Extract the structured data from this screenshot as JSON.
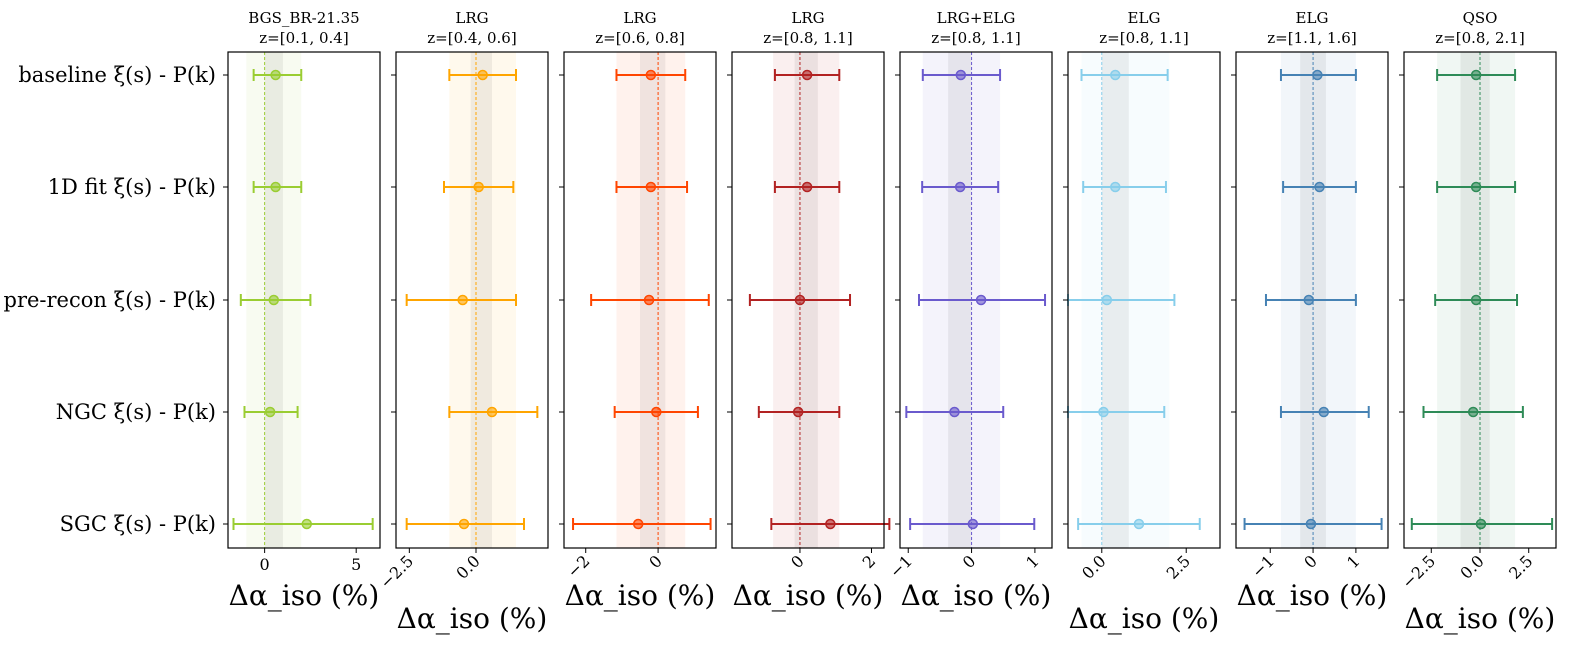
{
  "chart_data": {
    "type": "errorbar-forest",
    "rows": [
      "baseline ξ(s) - P(k)",
      "1D fit ξ(s) - P(k)",
      "pre-recon ξ(s) - P(k)",
      "NGC ξ(s) - P(k)",
      "SGC ξ(s) - P(k)"
    ],
    "xlabel": "Δα_iso (%)",
    "reference_line": 0,
    "panels": [
      {
        "title": "BGS_BR-21.35",
        "subtitle": "z=[0.1, 0.4]",
        "color": "#9acd32",
        "xlim": [
          -2.0,
          6.3
        ],
        "ticks": [
          0,
          5
        ],
        "tick_labels": [
          "0",
          "5"
        ],
        "tick_rotation": 0,
        "band_inner": [
          0,
          1.0
        ],
        "band_outer": [
          -1.0,
          2.0
        ],
        "points": [
          {
            "value": 0.6,
            "lo": -0.6,
            "hi": 2.0
          },
          {
            "value": 0.6,
            "lo": -0.6,
            "hi": 2.0
          },
          {
            "value": 0.5,
            "lo": -1.3,
            "hi": 2.5
          },
          {
            "value": 0.3,
            "lo": -1.1,
            "hi": 1.8
          },
          {
            "value": 2.3,
            "lo": -1.7,
            "hi": 5.9
          }
        ]
      },
      {
        "title": "LRG",
        "subtitle": "z=[0.4, 0.6]",
        "color": "#ffa500",
        "xlim": [
          -3.0,
          2.7
        ],
        "ticks": [
          -2.5,
          0.0
        ],
        "tick_labels": [
          "−2.5",
          "0.0"
        ],
        "tick_rotation": -45,
        "band_inner": [
          -0.2,
          0.6
        ],
        "band_outer": [
          -1.0,
          1.5
        ],
        "points": [
          {
            "value": 0.25,
            "lo": -1.0,
            "hi": 1.5
          },
          {
            "value": 0.1,
            "lo": -1.2,
            "hi": 1.4
          },
          {
            "value": -0.5,
            "lo": -2.6,
            "hi": 1.5
          },
          {
            "value": 0.6,
            "lo": -1.0,
            "hi": 2.3
          },
          {
            "value": -0.45,
            "lo": -2.6,
            "hi": 1.8
          }
        ]
      },
      {
        "title": "LRG",
        "subtitle": "z=[0.6, 0.8]",
        "color": "#ff4500",
        "xlim": [
          -2.6,
          1.6
        ],
        "ticks": [
          -2,
          0
        ],
        "tick_labels": [
          "−2",
          "0"
        ],
        "tick_rotation": -45,
        "band_inner": [
          -0.5,
          0.2
        ],
        "band_outer": [
          -1.15,
          0.75
        ],
        "points": [
          {
            "value": -0.2,
            "lo": -1.15,
            "hi": 0.75
          },
          {
            "value": -0.2,
            "lo": -1.15,
            "hi": 0.8
          },
          {
            "value": -0.25,
            "lo": -1.85,
            "hi": 1.4
          },
          {
            "value": -0.05,
            "lo": -1.2,
            "hi": 1.1
          },
          {
            "value": -0.55,
            "lo": -2.35,
            "hi": 1.45
          }
        ]
      },
      {
        "title": "LRG",
        "subtitle": "z=[0.8, 1.1]",
        "color": "#b22222",
        "xlim": [
          -1.9,
          2.35
        ],
        "ticks": [
          0,
          2
        ],
        "tick_labels": [
          "0",
          "2"
        ],
        "tick_rotation": -45,
        "band_inner": [
          -0.15,
          0.5
        ],
        "band_outer": [
          -0.75,
          1.1
        ],
        "points": [
          {
            "value": 0.2,
            "lo": -0.7,
            "hi": 1.1
          },
          {
            "value": 0.2,
            "lo": -0.7,
            "hi": 1.1
          },
          {
            "value": 0.0,
            "lo": -1.4,
            "hi": 1.4
          },
          {
            "value": -0.05,
            "lo": -1.15,
            "hi": 1.1
          },
          {
            "value": 0.85,
            "lo": -0.8,
            "hi": 2.5
          }
        ]
      },
      {
        "title": "LRG+ELG",
        "subtitle": "z=[0.8, 1.1]",
        "color": "#6a5acd",
        "xlim": [
          -1.13,
          1.27
        ],
        "ticks": [
          -1,
          0,
          1
        ],
        "tick_labels": [
          "−1",
          "0",
          "1"
        ],
        "tick_rotation": -45,
        "band_inner": [
          -0.37,
          0.0
        ],
        "band_outer": [
          -0.77,
          0.45
        ],
        "points": [
          {
            "value": -0.17,
            "lo": -0.77,
            "hi": 0.45
          },
          {
            "value": -0.18,
            "lo": -0.78,
            "hi": 0.42
          },
          {
            "value": 0.15,
            "lo": -0.83,
            "hi": 1.16
          },
          {
            "value": -0.27,
            "lo": -1.03,
            "hi": 0.5
          },
          {
            "value": 0.02,
            "lo": -0.97,
            "hi": 0.99
          }
        ]
      },
      {
        "title": "ELG",
        "subtitle": "z=[0.8, 1.1]",
        "color": "#87ceeb",
        "xlim": [
          -1.0,
          3.5
        ],
        "ticks": [
          0.0,
          2.5
        ],
        "tick_labels": [
          "0.0",
          "2.5"
        ],
        "tick_rotation": -45,
        "band_inner": [
          0.0,
          0.8
        ],
        "band_outer": [
          -0.6,
          2.0
        ],
        "points": [
          {
            "value": 0.4,
            "lo": -0.6,
            "hi": 1.95
          },
          {
            "value": 0.4,
            "lo": -0.55,
            "hi": 1.9
          },
          {
            "value": 0.15,
            "lo": -1.0,
            "hi": 2.15
          },
          {
            "value": 0.05,
            "lo": -1.0,
            "hi": 1.85
          },
          {
            "value": 1.1,
            "lo": -0.7,
            "hi": 2.9
          }
        ]
      },
      {
        "title": "ELG",
        "subtitle": "z=[1.1, 1.6]",
        "color": "#4682b4",
        "xlim": [
          -1.8,
          1.75
        ],
        "ticks": [
          -1,
          0,
          1
        ],
        "tick_labels": [
          "−1",
          "0",
          "1"
        ],
        "tick_rotation": -45,
        "band_inner": [
          -0.3,
          0.3
        ],
        "band_outer": [
          -0.75,
          1.0
        ],
        "points": [
          {
            "value": 0.1,
            "lo": -0.75,
            "hi": 1.0
          },
          {
            "value": 0.15,
            "lo": -0.7,
            "hi": 1.0
          },
          {
            "value": -0.1,
            "lo": -1.1,
            "hi": 1.0
          },
          {
            "value": 0.25,
            "lo": -0.75,
            "hi": 1.3
          },
          {
            "value": -0.05,
            "lo": -1.6,
            "hi": 1.6
          }
        ]
      },
      {
        "title": "QSO",
        "subtitle": "z=[0.8, 2.1]",
        "color": "#2e8b57",
        "xlim": [
          -3.9,
          3.9
        ],
        "ticks": [
          -2.5,
          0.0,
          2.5
        ],
        "tick_labels": [
          "−2.5",
          "0.0",
          "2.5"
        ],
        "tick_rotation": -45,
        "band_inner": [
          -1.0,
          0.5
        ],
        "band_outer": [
          -2.2,
          1.8
        ],
        "points": [
          {
            "value": -0.2,
            "lo": -2.2,
            "hi": 1.8
          },
          {
            "value": -0.2,
            "lo": -2.2,
            "hi": 1.8
          },
          {
            "value": -0.2,
            "lo": -2.3,
            "hi": 1.9
          },
          {
            "value": -0.35,
            "lo": -2.9,
            "hi": 2.2
          },
          {
            "value": 0.05,
            "lo": -3.5,
            "hi": 3.7
          }
        ]
      }
    ]
  }
}
